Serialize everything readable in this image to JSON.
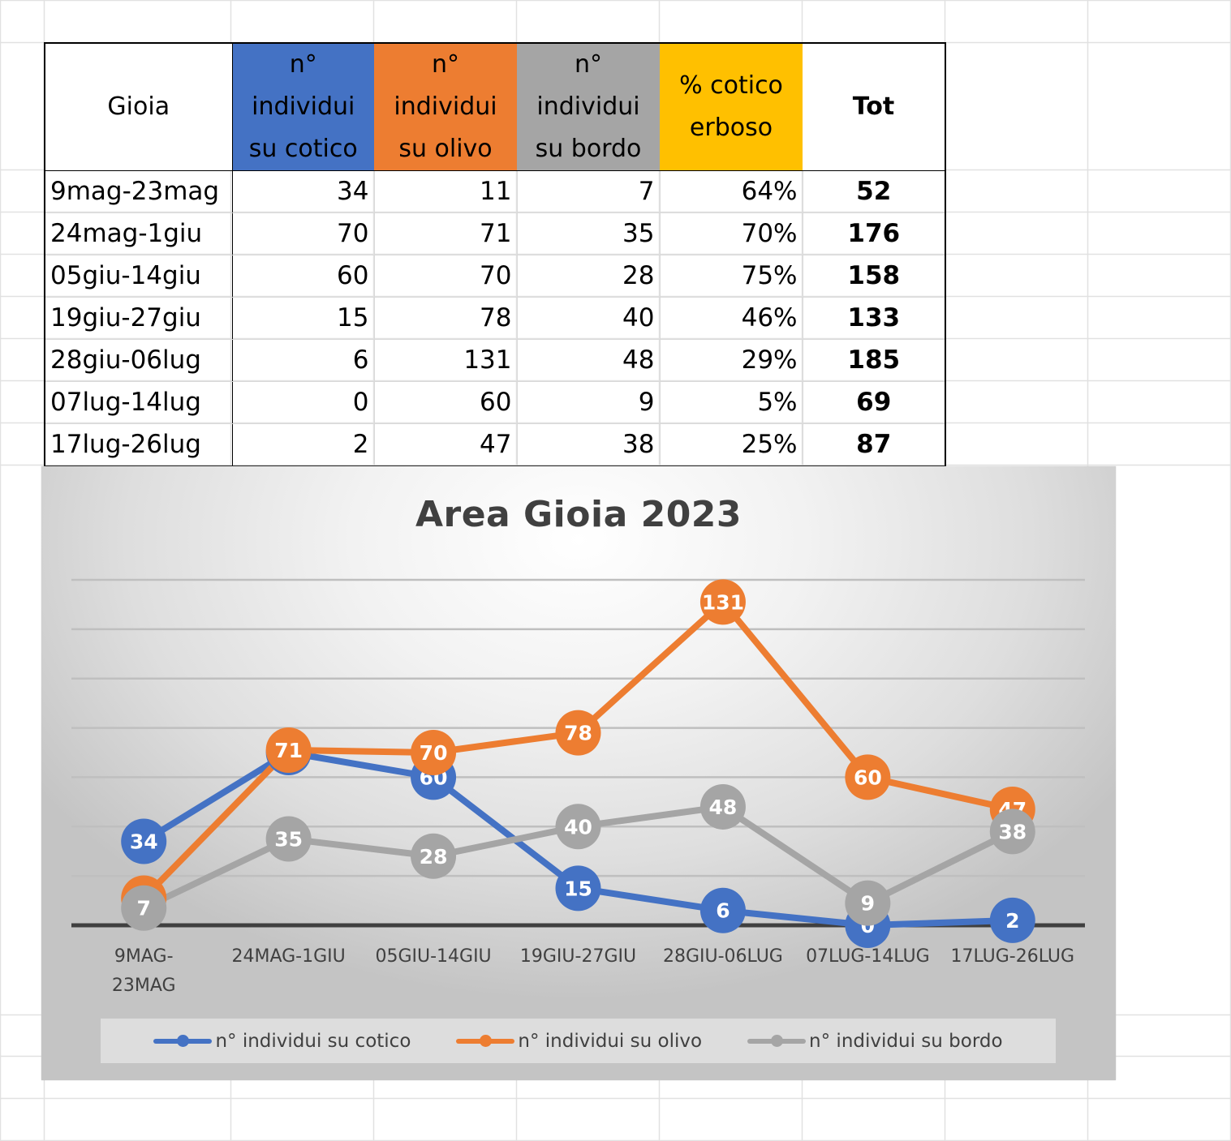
{
  "colors": {
    "series_blue": "#4472C4",
    "series_orange": "#ED7D31",
    "series_gray": "#A5A5A5",
    "header_gold": "#FFC000",
    "text_dark": "#404040",
    "axis_line": "#404040",
    "gridline": "#BFBFBF"
  },
  "table": {
    "headers": [
      {
        "lines": [
          "Gioia"
        ],
        "bg": "#FFFFFF"
      },
      {
        "lines": [
          "n°",
          "individui",
          "su cotico"
        ],
        "bg": "#4472C4"
      },
      {
        "lines": [
          "n°",
          "individui",
          "su olivo"
        ],
        "bg": "#ED7D31"
      },
      {
        "lines": [
          "n°",
          "individui",
          "su bordo"
        ],
        "bg": "#A5A5A5"
      },
      {
        "lines": [
          "% cotico",
          "erboso"
        ],
        "bg": "#FFC000"
      },
      {
        "lines": [
          "Tot"
        ],
        "bg": "#FFFFFF"
      }
    ],
    "rows": [
      {
        "period": "9mag-23mag",
        "cotico": "34",
        "olivo": "11",
        "bordo": "7",
        "pct": "64%",
        "tot": "52"
      },
      {
        "period": "24mag-1giu",
        "cotico": "70",
        "olivo": "71",
        "bordo": "35",
        "pct": "70%",
        "tot": "176"
      },
      {
        "period": "05giu-14giu",
        "cotico": "60",
        "olivo": "70",
        "bordo": "28",
        "pct": "75%",
        "tot": "158"
      },
      {
        "period": "19giu-27giu",
        "cotico": "15",
        "olivo": "78",
        "bordo": "40",
        "pct": "46%",
        "tot": "133"
      },
      {
        "period": "28giu-06lug",
        "cotico": "6",
        "olivo": "131",
        "bordo": "48",
        "pct": "29%",
        "tot": "185"
      },
      {
        "period": "07lug-14lug",
        "cotico": "0",
        "olivo": "60",
        "bordo": "9",
        "pct": "5%",
        "tot": "69"
      },
      {
        "period": "17lug-26lug",
        "cotico": "2",
        "olivo": "47",
        "bordo": "38",
        "pct": "25%",
        "tot": "87"
      }
    ]
  },
  "chart_data": {
    "type": "line",
    "title": "Area Gioia 2023",
    "xlabel": "",
    "ylabel": "",
    "categories": [
      "9MAG-23MAG",
      "24MAG-1GIU",
      "05GIU-14GIU",
      "19GIU-27GIU",
      "28GIU-06LUG",
      "07LUG-14LUG",
      "17LUG-26LUG"
    ],
    "category_label_lines": [
      [
        "9MAG-",
        "23MAG"
      ],
      [
        "24MAG-1GIU"
      ],
      [
        "05GIU-14GIU"
      ],
      [
        "19GIU-27GIU"
      ],
      [
        "28GIU-06LUG"
      ],
      [
        "07LUG-14LUG"
      ],
      [
        "17LUG-26LUG"
      ]
    ],
    "series": [
      {
        "name": "n° individui su cotico",
        "color": "#4472C4",
        "values": [
          34,
          70,
          60,
          15,
          6,
          0,
          2
        ]
      },
      {
        "name": "n° individui su olivo",
        "color": "#ED7D31",
        "values": [
          11,
          71,
          70,
          78,
          131,
          60,
          47
        ]
      },
      {
        "name": "n° individui su bordo",
        "color": "#A5A5A5",
        "values": [
          7,
          35,
          28,
          40,
          48,
          9,
          38
        ]
      }
    ],
    "ylim": [
      0,
      140
    ],
    "y_gridline_step": 20,
    "y_axis_labels_visible": false,
    "grid": true,
    "data_labels": true,
    "markers": "circle",
    "legend_position": "bottom"
  }
}
